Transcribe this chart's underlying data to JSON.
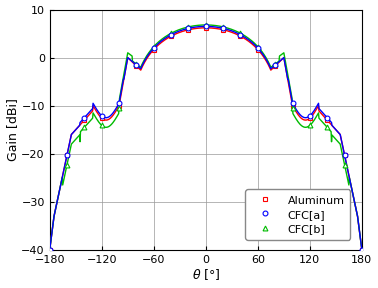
{
  "title": "",
  "xlabel": "$\\theta$ [°]",
  "ylabel": "Gain [dBi]",
  "xlim": [
    -180,
    180
  ],
  "ylim": [
    -40,
    10
  ],
  "xticks": [
    -180,
    -120,
    -60,
    0,
    60,
    120,
    180
  ],
  "yticks": [
    -40,
    -30,
    -20,
    -10,
    0,
    10
  ],
  "series": [
    {
      "label": "Aluminum",
      "color": "#ff0000",
      "marker": "s",
      "markersize": 3.5,
      "markerfacecolor": "white",
      "linewidth": 1.0
    },
    {
      "label": "CFC[a]",
      "color": "#0000ff",
      "marker": "o",
      "markersize": 3.5,
      "markerfacecolor": "white",
      "linewidth": 1.0
    },
    {
      "label": "CFC[b]",
      "color": "#00bb00",
      "marker": "^",
      "markersize": 3.5,
      "markerfacecolor": "white",
      "linewidth": 1.0
    }
  ],
  "background_color": "#ffffff",
  "grid_color": "#999999",
  "grid_linewidth": 0.5
}
